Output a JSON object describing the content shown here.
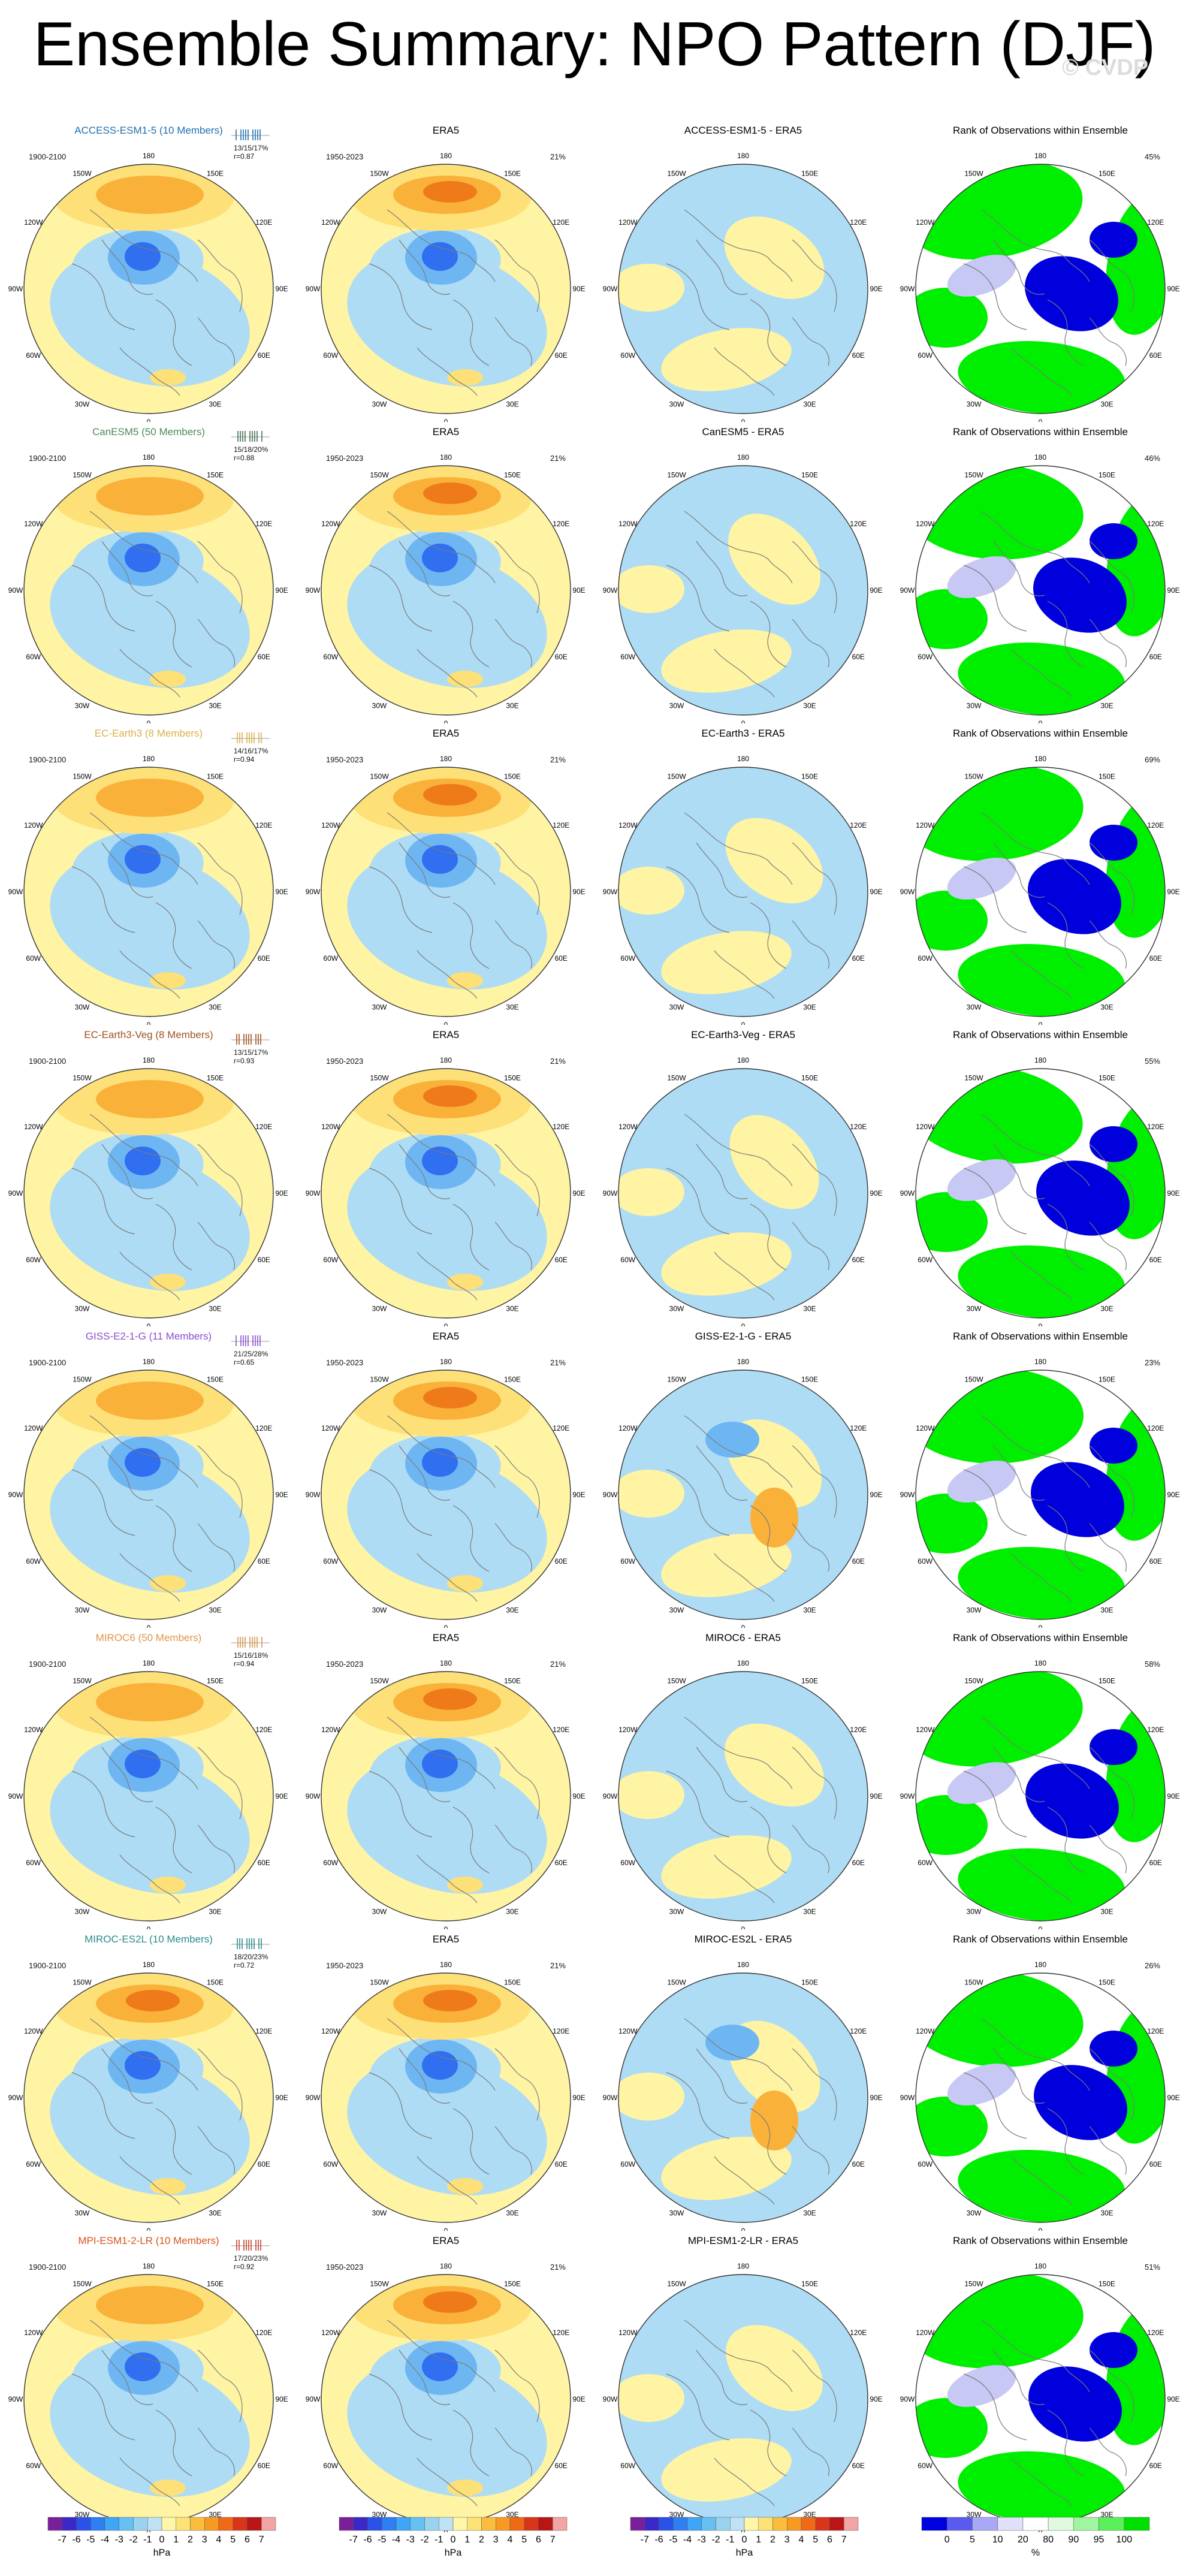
{
  "page": {
    "title": "Ensemble Summary: NPO Pattern (DJF)",
    "watermark": "© CVDP"
  },
  "shared": {
    "era5_title": "ERA5",
    "era5_period": "1950-2023",
    "era5_pct": "21%",
    "rank_title": "Rank of Observations within Ensemble",
    "longitude_labels": [
      "180",
      "150E",
      "120E",
      "90E",
      "60E",
      "30E",
      "0",
      "30W",
      "60W",
      "90W",
      "120W",
      "150W"
    ]
  },
  "rows": [
    {
      "model": "ACCESS-ESM1-5 (10 Members)",
      "model_color": "#1f6fb0",
      "period": "1900-2100",
      "stats1": "13/15/17%",
      "stats2": "r=0.87",
      "diff_title": "ACCESS-ESM1-5 - ERA5",
      "rank_pct": "45%",
      "strip_color": "#1f6fb0"
    },
    {
      "model": "CanESM5 (50 Members)",
      "model_color": "#4a8a5a",
      "period": "1900-2100",
      "stats1": "15/18/20%",
      "stats2": "r=0.88",
      "diff_title": "CanESM5 - ERA5",
      "rank_pct": "46%",
      "strip_color": "#3f6f4f"
    },
    {
      "model": "EC-Earth3 (8 Members)",
      "model_color": "#d9b14a",
      "period": "1900-2100",
      "stats1": "14/16/17%",
      "stats2": "r=0.94",
      "diff_title": "EC-Earth3 - ERA5",
      "rank_pct": "69%",
      "strip_color": "#d9b14a"
    },
    {
      "model": "EC-Earth3-Veg (8 Members)",
      "model_color": "#a0521d",
      "period": "1900-2100",
      "stats1": "13/15/17%",
      "stats2": "r=0.93",
      "diff_title": "EC-Earth3-Veg - ERA5",
      "rank_pct": "55%",
      "strip_color": "#a0521d"
    },
    {
      "model": "GISS-E2-1-G (11 Members)",
      "model_color": "#8a4fd0",
      "period": "1900-2100",
      "stats1": "21/25/28%",
      "stats2": "r=0.65",
      "diff_title": "GISS-E2-1-G - ERA5",
      "rank_pct": "23%",
      "strip_color": "#8a4fd0"
    },
    {
      "model": "MIROC6 (50 Members)",
      "model_color": "#e0954a",
      "period": "1900-2100",
      "stats1": "15/16/18%",
      "stats2": "r=0.94",
      "diff_title": "MIROC6 - ERA5",
      "rank_pct": "58%",
      "strip_color": "#d9954a"
    },
    {
      "model": "MIROC-ES2L (10 Members)",
      "model_color": "#2a8a8a",
      "period": "1900-2100",
      "stats1": "18/20/23%",
      "stats2": "r=0.72",
      "diff_title": "MIROC-ES2L - ERA5",
      "rank_pct": "26%",
      "strip_color": "#2a8a8a"
    },
    {
      "model": "MPI-ESM1-2-LR (10 Members)",
      "model_color": "#d9531d",
      "period": "1900-2100",
      "stats1": "17/20/23%",
      "stats2": "r=0.92",
      "diff_title": "MPI-ESM1-2-LR - ERA5",
      "rank_pct": "51%",
      "strip_color": "#c8402a"
    }
  ],
  "colorbars": {
    "hpa_unit": "hPa",
    "hpa_labels": [
      "-7",
      "-6",
      "-5",
      "-4",
      "-3",
      "-2",
      "-1",
      "0",
      "1",
      "2",
      "3",
      "4",
      "5",
      "6",
      "7"
    ],
    "hpa_colors": [
      "#7a1f9a",
      "#3a28c8",
      "#2b52e8",
      "#2f7ef2",
      "#3fa6f5",
      "#66c0f2",
      "#99d3f0",
      "#bfe3f5",
      "#fff6a8",
      "#fde277",
      "#fbbd3d",
      "#f79a22",
      "#ef6a16",
      "#d9351a",
      "#b81616",
      "#f3a4a4"
    ],
    "pct_unit": "%",
    "pct_labels": [
      "0",
      "5",
      "10",
      "20",
      "80",
      "90",
      "95",
      "100"
    ],
    "pct_colors": [
      "#0000e0",
      "#5a5af0",
      "#a8a8f5",
      "#e0e0fa",
      "#ffffff",
      "#e0fae0",
      "#a0f5a0",
      "#5af05a",
      "#00e000"
    ]
  },
  "map_colors": {
    "land_outline": "#7a7a7a",
    "deep_blue": "#2f6ff0",
    "mid_blue": "#6eb6f2",
    "light_blue": "#aedcf5",
    "pale_yellow": "#fff4a3",
    "yellow": "#fde077",
    "orange": "#f9b13a",
    "dark_orange": "#ef7a1a",
    "rank_green": "#00ee00",
    "rank_blue": "#0000dd",
    "rank_lavender": "#c8c8f5"
  }
}
